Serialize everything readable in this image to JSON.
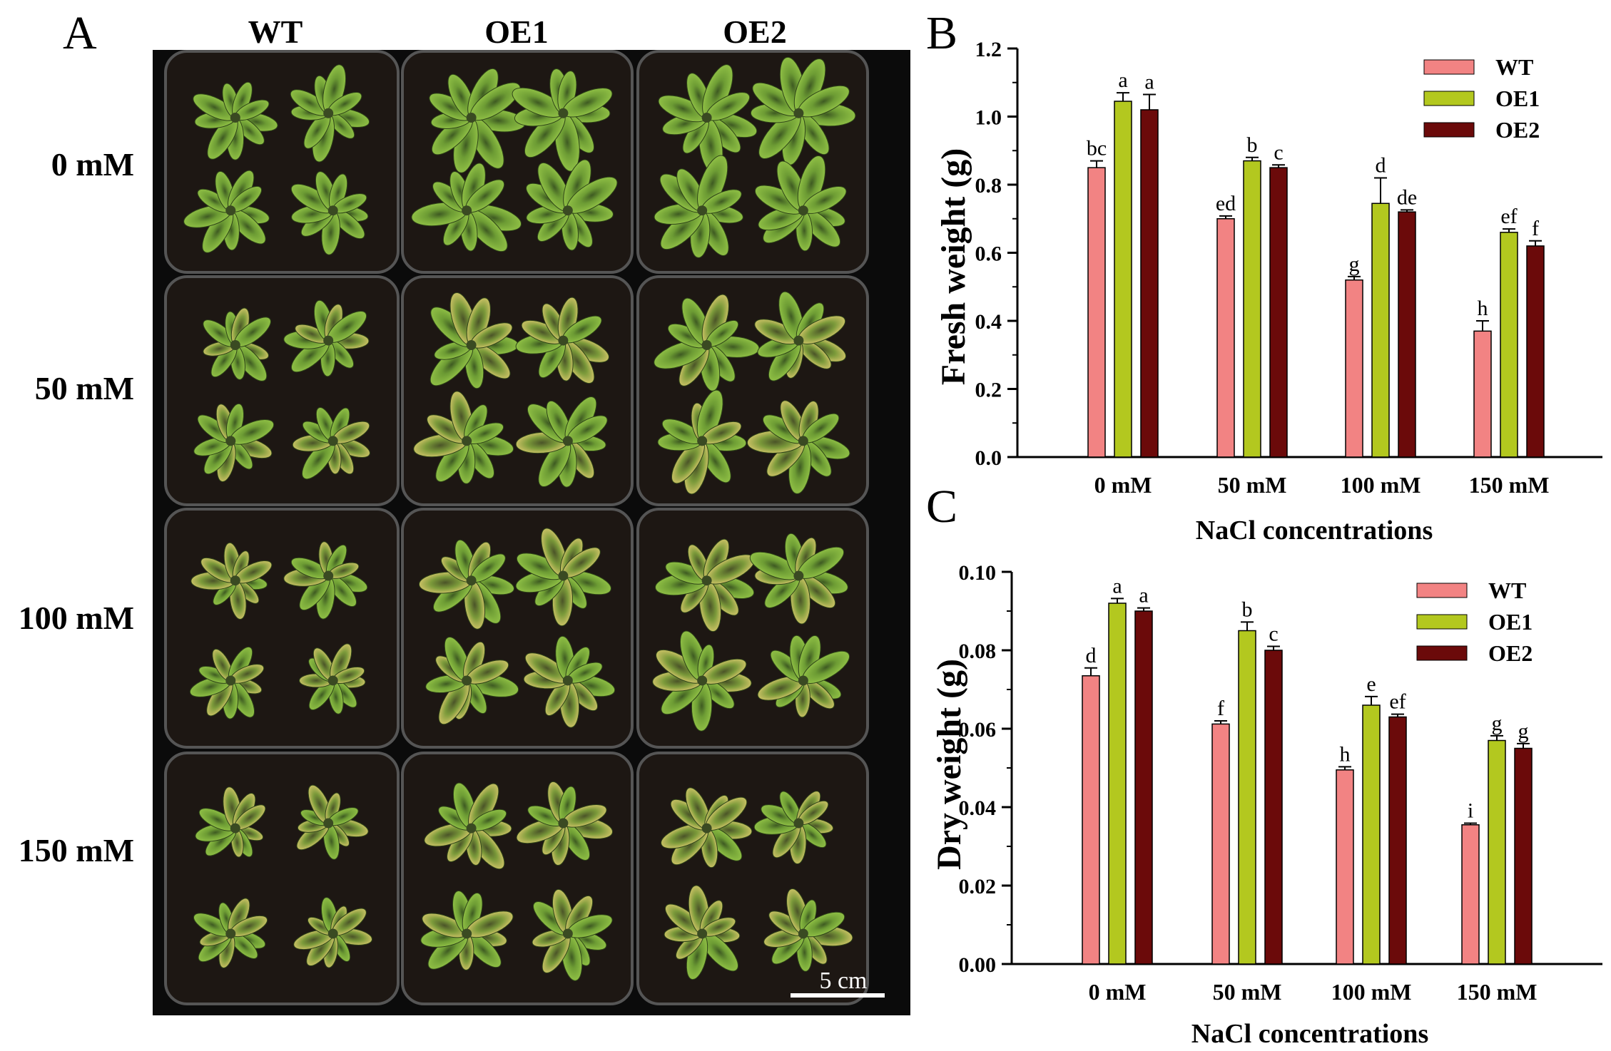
{
  "panel_labels": {
    "a": "A",
    "b": "B",
    "c": "C"
  },
  "photo": {
    "columns": [
      "WT",
      "OE1",
      "OE2"
    ],
    "rows": [
      "0 mM",
      "50 mM",
      "100 mM",
      "150 mM"
    ],
    "scale_bar_label": "5 cm"
  },
  "colors": {
    "WT": "#f28383",
    "OE1": "#b3c81f",
    "OE2": "#6b0a0a"
  },
  "chart_data": [
    {
      "type": "bar",
      "panel": "B",
      "xlabel": "NaCl concentrations",
      "ylabel": "Fresh weight (g)",
      "categories": [
        "0 mM",
        "50 mM",
        "100 mM",
        "150 mM"
      ],
      "ylim": [
        0,
        1.2
      ],
      "yticks": [
        "0.0",
        "0.2",
        "0.4",
        "0.6",
        "0.8",
        "1.0",
        "1.2"
      ],
      "legend_position": "top-right",
      "series": [
        {
          "name": "WT",
          "values": [
            0.85,
            0.7,
            0.52,
            0.37
          ],
          "errors": [
            0.02,
            0.008,
            0.01,
            0.03
          ],
          "labels": [
            "bc",
            "ed",
            "g",
            "h"
          ]
        },
        {
          "name": "OE1",
          "values": [
            1.045,
            0.87,
            0.745,
            0.66
          ],
          "errors": [
            0.025,
            0.01,
            0.075,
            0.01
          ],
          "labels": [
            "a",
            "b",
            "d",
            "ef"
          ]
        },
        {
          "name": "OE2",
          "values": [
            1.02,
            0.85,
            0.72,
            0.62
          ],
          "errors": [
            0.045,
            0.008,
            0.006,
            0.015
          ],
          "labels": [
            "a",
            "c",
            "de",
            "f"
          ]
        }
      ]
    },
    {
      "type": "bar",
      "panel": "C",
      "xlabel": "NaCl concentrations",
      "ylabel": "Dry weight (g)",
      "categories": [
        "0 mM",
        "50 mM",
        "100 mM",
        "150 mM"
      ],
      "ylim": [
        0,
        0.1
      ],
      "yticks": [
        "0.00",
        "0.02",
        "0.04",
        "0.06",
        "0.08",
        "0.10"
      ],
      "legend_position": "top-right",
      "series": [
        {
          "name": "WT",
          "values": [
            0.0735,
            0.0612,
            0.0495,
            0.0355
          ],
          "errors": [
            0.002,
            0.0008,
            0.0008,
            0.0004
          ],
          "labels": [
            "d",
            "f",
            "h",
            "i"
          ]
        },
        {
          "name": "OE1",
          "values": [
            0.092,
            0.085,
            0.066,
            0.057
          ],
          "errors": [
            0.0012,
            0.0022,
            0.0022,
            0.0012
          ],
          "labels": [
            "a",
            "b",
            "e",
            "g"
          ]
        },
        {
          "name": "OE2",
          "values": [
            0.09,
            0.08,
            0.063,
            0.055
          ],
          "errors": [
            0.0008,
            0.001,
            0.0007,
            0.0012
          ],
          "labels": [
            "a",
            "c",
            "ef",
            "g"
          ]
        }
      ]
    }
  ]
}
